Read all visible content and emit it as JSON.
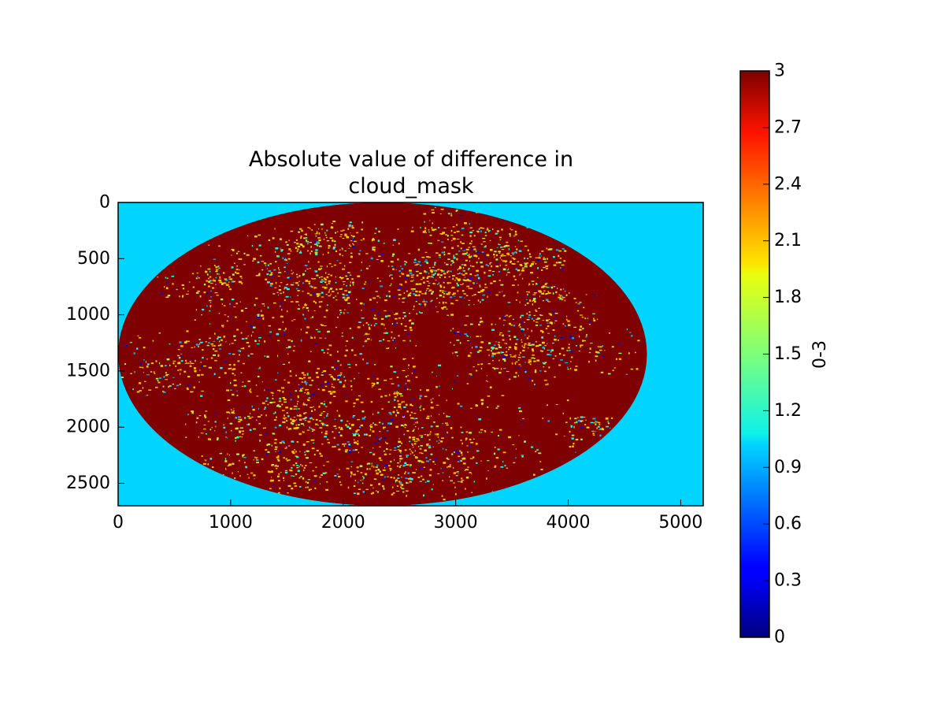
{
  "chart_data": {
    "type": "heatmap",
    "title_lines": [
      "Absolute value of difference in",
      "cloud_mask"
    ],
    "xlabel": "",
    "ylabel": "",
    "x_ticks": [
      0,
      1000,
      2000,
      3000,
      4000,
      5000
    ],
    "y_ticks": [
      0,
      500,
      1000,
      1500,
      2000,
      2500
    ],
    "xlim": [
      0,
      5200
    ],
    "ylim": [
      2700,
      0
    ],
    "disk": {
      "center_x": 2350,
      "center_y": 1350,
      "radius_x": 2350,
      "radius_y": 1350
    },
    "background_value": 1,
    "dominant_value": 3,
    "colorbar": {
      "label": "0-3",
      "min": 0,
      "max": 3,
      "ticks": [
        "0",
        "0.3",
        "0.6",
        "0.9",
        "1.2",
        "1.5",
        "1.8",
        "2.1",
        "2.4",
        "2.7",
        "3"
      ],
      "colormap": "jet"
    }
  }
}
